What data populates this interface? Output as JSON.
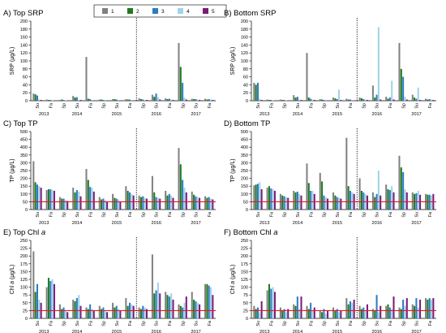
{
  "colors": {
    "series": [
      "#808080",
      "#1e7a1e",
      "#2b7bc4",
      "#9fd3ea",
      "#7a1a7a"
    ],
    "threshold": "#e31a1c",
    "axis": "#000000"
  },
  "chart_data": [
    {
      "type": "bar",
      "panel": "A",
      "title": "A) Top SRP",
      "ylabel": "SRP (µg/L)",
      "ylim": [
        0,
        200
      ],
      "yticks": [
        0,
        20,
        40,
        60,
        80,
        100,
        120,
        140,
        160,
        180,
        200
      ],
      "threshold": null,
      "legend": "top",
      "groups": [
        {
          "season": "Su",
          "values": [
            18,
            16,
            13,
            3,
            2
          ]
        },
        {
          "season": "Fa",
          "values": [
            3,
            2,
            2,
            1,
            1
          ]
        },
        {
          "season": "Sp",
          "values": [
            2,
            3,
            2,
            1,
            1
          ]
        },
        {
          "season": "Su",
          "values": [
            12,
            8,
            9,
            2,
            2
          ]
        },
        {
          "season": "Fa",
          "values": [
            110,
            5,
            4,
            2,
            1
          ]
        },
        {
          "season": "Sp",
          "values": [
            3,
            3,
            2,
            2,
            1
          ]
        },
        {
          "season": "Su",
          "values": [
            4,
            4,
            3,
            2,
            1
          ]
        },
        {
          "season": "Fa",
          "values": [
            4,
            3,
            3,
            2,
            1
          ]
        },
        {
          "season": "Sp",
          "values": [
            6,
            4,
            3,
            2,
            2
          ]
        },
        {
          "season": "Su",
          "values": [
            15,
            10,
            18,
            9,
            3
          ]
        },
        {
          "season": "Fa",
          "values": [
            6,
            4,
            5,
            3,
            2
          ]
        },
        {
          "season": "Sp",
          "values": [
            145,
            85,
            45,
            8,
            3
          ]
        },
        {
          "season": "Su",
          "values": [
            5,
            4,
            4,
            3,
            2
          ]
        },
        {
          "season": "Fa",
          "values": [
            5,
            3,
            4,
            3,
            2
          ]
        }
      ]
    },
    {
      "type": "bar",
      "panel": "B",
      "title": "B) Bottom SRP",
      "ylabel": "SRP (µg/L)",
      "ylim": [
        0,
        200
      ],
      "yticks": [
        0,
        20,
        40,
        60,
        80,
        100,
        120,
        140,
        160,
        180,
        200
      ],
      "threshold": null,
      "legend": null,
      "groups": [
        {
          "season": "Su",
          "values": [
            45,
            40,
            45,
            5,
            2
          ]
        },
        {
          "season": "Fa",
          "values": [
            3,
            2,
            2,
            1,
            1
          ]
        },
        {
          "season": "Sp",
          "values": [
            3,
            2,
            2,
            1,
            1
          ]
        },
        {
          "season": "Su",
          "values": [
            14,
            8,
            10,
            3,
            2
          ]
        },
        {
          "season": "Fa",
          "values": [
            120,
            8,
            5,
            3,
            2
          ]
        },
        {
          "season": "Sp",
          "values": [
            4,
            3,
            2,
            2,
            1
          ]
        },
        {
          "season": "Su",
          "values": [
            8,
            6,
            4,
            28,
            2
          ]
        },
        {
          "season": "Fa",
          "values": [
            5,
            3,
            3,
            2,
            1
          ]
        },
        {
          "season": "Sp",
          "values": [
            8,
            6,
            4,
            3,
            2
          ]
        },
        {
          "season": "Su",
          "values": [
            38,
            8,
            15,
            185,
            3
          ]
        },
        {
          "season": "Fa",
          "values": [
            10,
            5,
            8,
            50,
            3
          ]
        },
        {
          "season": "Sp",
          "values": [
            145,
            80,
            60,
            10,
            3
          ]
        },
        {
          "season": "Su",
          "values": [
            15,
            8,
            5,
            33,
            2
          ]
        },
        {
          "season": "Fa",
          "values": [
            5,
            3,
            4,
            3,
            2
          ]
        }
      ]
    },
    {
      "type": "bar",
      "panel": "C",
      "title": "C) Top TP",
      "ylabel": "TP (µg/L)",
      "ylim": [
        0,
        500
      ],
      "yticks": [
        0,
        50,
        100,
        150,
        200,
        250,
        300,
        350,
        400,
        450,
        500
      ],
      "threshold": 50,
      "legend": null,
      "groups": [
        {
          "season": "Su",
          "values": [
            310,
            175,
            160,
            150,
            140
          ]
        },
        {
          "season": "Fa",
          "values": [
            125,
            130,
            130,
            125,
            120
          ]
        },
        {
          "season": "Sp",
          "values": [
            80,
            70,
            70,
            60,
            55
          ]
        },
        {
          "season": "Su",
          "values": [
            140,
            110,
            125,
            115,
            85
          ]
        },
        {
          "season": "Fa",
          "values": [
            260,
            190,
            145,
            140,
            115
          ]
        },
        {
          "season": "Sp",
          "values": [
            80,
            65,
            70,
            60,
            50
          ]
        },
        {
          "season": "Su",
          "values": [
            100,
            75,
            70,
            65,
            50
          ]
        },
        {
          "season": "Fa",
          "values": [
            150,
            120,
            110,
            100,
            90
          ]
        },
        {
          "season": "Sp",
          "values": [
            90,
            80,
            85,
            75,
            70
          ]
        },
        {
          "season": "Su",
          "values": [
            215,
            110,
            80,
            75,
            70
          ]
        },
        {
          "season": "Fa",
          "values": [
            120,
            90,
            100,
            90,
            75
          ]
        },
        {
          "season": "Sp",
          "values": [
            395,
            290,
            190,
            140,
            110
          ]
        },
        {
          "season": "Su",
          "values": [
            115,
            95,
            85,
            80,
            75
          ]
        },
        {
          "season": "Fa",
          "values": [
            85,
            75,
            80,
            70,
            65
          ]
        }
      ]
    },
    {
      "type": "bar",
      "panel": "D",
      "title": "D) Bottom TP",
      "ylabel": "TP (µg/L)",
      "ylim": [
        0,
        500
      ],
      "yticks": [
        0,
        50,
        100,
        150,
        200,
        250,
        300,
        350,
        400,
        450,
        500
      ],
      "threshold": 50,
      "legend": null,
      "groups": [
        {
          "season": "Su",
          "values": [
            155,
            160,
            165,
            175,
            130
          ]
        },
        {
          "season": "Fa",
          "values": [
            140,
            150,
            135,
            130,
            120
          ]
        },
        {
          "season": "Sp",
          "values": [
            100,
            90,
            85,
            80,
            75
          ]
        },
        {
          "season": "Su",
          "values": [
            120,
            110,
            115,
            100,
            90
          ]
        },
        {
          "season": "Fa",
          "values": [
            295,
            170,
            120,
            120,
            100
          ]
        },
        {
          "season": "Sp",
          "values": [
            235,
            180,
            90,
            80,
            70
          ]
        },
        {
          "season": "Su",
          "values": [
            110,
            90,
            80,
            75,
            70
          ]
        },
        {
          "season": "Fa",
          "values": [
            460,
            150,
            120,
            110,
            100
          ]
        },
        {
          "season": "Sp",
          "values": [
            200,
            120,
            110,
            100,
            90
          ]
        },
        {
          "season": "Su",
          "values": [
            110,
            80,
            100,
            250,
            90
          ]
        },
        {
          "season": "Fa",
          "values": [
            160,
            130,
            125,
            150,
            110
          ]
        },
        {
          "season": "Sp",
          "values": [
            345,
            270,
            240,
            130,
            110
          ]
        },
        {
          "season": "Su",
          "values": [
            110,
            100,
            105,
            120,
            95
          ]
        },
        {
          "season": "Fa",
          "values": [
            100,
            95,
            95,
            90,
            100
          ]
        }
      ]
    },
    {
      "type": "bar",
      "panel": "E",
      "title": "E) Top Chl a",
      "ylabel": "Chl a (µg/L)",
      "ylim": [
        0,
        250
      ],
      "yticks": [
        0,
        25,
        50,
        75,
        100,
        125,
        150,
        175,
        200,
        225,
        250
      ],
      "threshold": 25,
      "legend": null,
      "groups": [
        {
          "season": "Su",
          "values": [
            215,
            85,
            110,
            60,
            50
          ]
        },
        {
          "season": "Fa",
          "values": [
            100,
            130,
            120,
            125,
            110
          ]
        },
        {
          "season": "Sp",
          "values": [
            45,
            30,
            35,
            25,
            20
          ]
        },
        {
          "season": "Su",
          "values": [
            60,
            55,
            65,
            75,
            40
          ]
        },
        {
          "season": "Fa",
          "values": [
            35,
            30,
            45,
            30,
            25
          ]
        },
        {
          "season": "Sp",
          "values": [
            40,
            30,
            35,
            25,
            20
          ]
        },
        {
          "season": "Su",
          "values": [
            50,
            35,
            40,
            30,
            25
          ]
        },
        {
          "season": "Fa",
          "values": [
            65,
            40,
            50,
            45,
            40
          ]
        },
        {
          "season": "Sp",
          "values": [
            35,
            30,
            40,
            35,
            30
          ]
        },
        {
          "season": "Su",
          "values": [
            205,
            80,
            90,
            115,
            80
          ]
        },
        {
          "season": "Fa",
          "values": [
            85,
            75,
            70,
            80,
            60
          ]
        },
        {
          "season": "Sp",
          "values": [
            45,
            40,
            35,
            50,
            70
          ]
        },
        {
          "season": "Su",
          "values": [
            85,
            60,
            55,
            50,
            45
          ]
        },
        {
          "season": "Fa",
          "values": [
            110,
            110,
            105,
            100,
            75
          ]
        }
      ]
    },
    {
      "type": "bar",
      "panel": "F",
      "title": "F) Bottom Chl a",
      "ylabel": "Chl a (µg/L)",
      "ylim": [
        0,
        250
      ],
      "yticks": [
        0,
        25,
        50,
        75,
        100,
        125,
        150,
        175,
        200,
        225,
        250
      ],
      "threshold": 25,
      "legend": null,
      "groups": [
        {
          "season": "Su",
          "values": [
            40,
            30,
            35,
            20,
            55
          ]
        },
        {
          "season": "Fa",
          "values": [
            90,
            110,
            95,
            100,
            85
          ]
        },
        {
          "season": "Sp",
          "values": [
            35,
            25,
            30,
            20,
            30
          ]
        },
        {
          "season": "Su",
          "values": [
            45,
            40,
            70,
            30,
            70
          ]
        },
        {
          "season": "Fa",
          "values": [
            40,
            30,
            50,
            25,
            35
          ]
        },
        {
          "season": "Sp",
          "values": [
            25,
            20,
            30,
            15,
            25
          ]
        },
        {
          "season": "Su",
          "values": [
            35,
            25,
            30,
            20,
            25
          ]
        },
        {
          "season": "Fa",
          "values": [
            65,
            45,
            55,
            50,
            60
          ]
        },
        {
          "season": "Sp",
          "values": [
            40,
            30,
            35,
            25,
            45
          ]
        },
        {
          "season": "Su",
          "values": [
            30,
            25,
            75,
            20,
            40
          ]
        },
        {
          "season": "Fa",
          "values": [
            40,
            45,
            35,
            30,
            70
          ]
        },
        {
          "season": "Sp",
          "values": [
            35,
            30,
            60,
            40,
            65
          ]
        },
        {
          "season": "Su",
          "values": [
            45,
            40,
            65,
            35,
            60
          ]
        },
        {
          "season": "Fa",
          "values": [
            65,
            60,
            65,
            60,
            65
          ]
        }
      ]
    }
  ],
  "legend": [
    "1",
    "2",
    "3",
    "4",
    "5"
  ],
  "years": [
    "2013",
    "2014",
    "2015",
    "2016",
    "2017"
  ],
  "year_groups": [
    [
      0,
      1
    ],
    [
      2,
      3,
      4
    ],
    [
      5,
      6,
      7
    ],
    [
      8,
      9,
      10
    ],
    [
      11,
      12,
      13
    ]
  ],
  "divider_after_group": 7
}
